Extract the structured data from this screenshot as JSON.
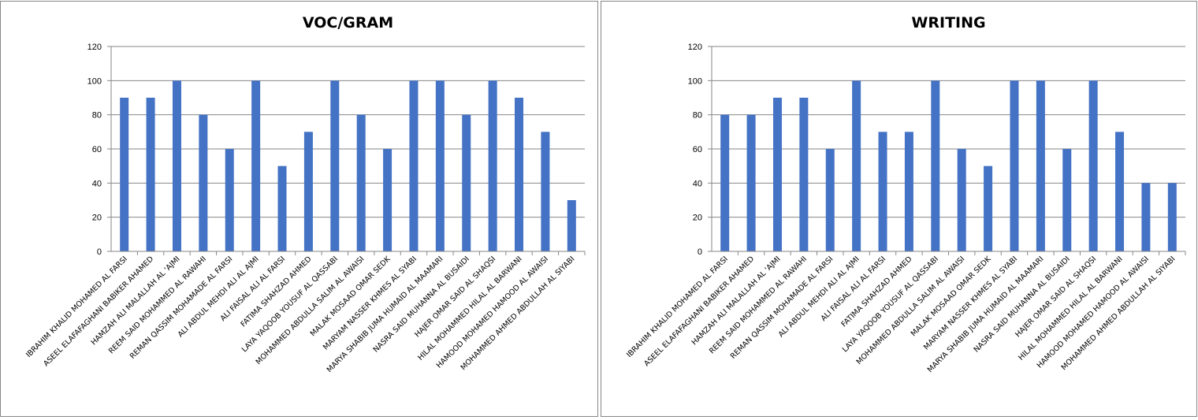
{
  "chart_data": [
    {
      "type": "bar",
      "title": "VOC/GRAM",
      "xlabel": "",
      "ylabel": "",
      "ylim": [
        0,
        120
      ],
      "yticks": [
        0,
        20,
        40,
        60,
        80,
        100,
        120
      ],
      "grid": true,
      "bar_color": "#4472C4",
      "categories": [
        "IBRAHIM KHALID MOHAMED AL FARSI",
        "ASEEL ELAFAFAGHANI BABIKER AHAMED",
        "HAMZAH ALI MALALLAH AL 'AJMI",
        "REEM SAID MOHAMMED AL RAWAHI",
        "REMAN QASSIM MOHAMADE AL FARSI",
        "ALI ABDUL MEHDI ALI AL AJMI",
        "ALI FAISAL ALI AL FARSI",
        "FATIMA SHAHZAD AHMED",
        "LAYA YAQOOB YOUSUF AL QASSABI",
        "MOHAMMED ABDULLA SALIM AL AWAISI",
        "MALAK MOSAAD OMAR SEDK",
        "MARYAM NASSER KHMES AL SYABI",
        "MARYA SHABIB JUMA HUMAID AL MAAMARI",
        "NASRA SAID MUHANNA AL BUSAIDI",
        "HAJER OMAR SAID AL SHAQSI",
        "HILAL MOHAMMED HILAL AL BARWANI",
        "HAMOOD MOHAMED HAMOOD AL AWAISI",
        "MOHAMMED AHMED ABDULLAH AL SIYABI"
      ],
      "values": [
        90,
        90,
        100,
        80,
        60,
        100,
        50,
        70,
        100,
        80,
        60,
        100,
        100,
        80,
        100,
        90,
        70,
        30
      ]
    },
    {
      "type": "bar",
      "title": "WRITING",
      "xlabel": "",
      "ylabel": "",
      "ylim": [
        0,
        120
      ],
      "yticks": [
        0,
        20,
        40,
        60,
        80,
        100,
        120
      ],
      "grid": true,
      "bar_color": "#4472C4",
      "categories": [
        "IBRAHIM KHALID MOHAMED AL FARSI",
        "ASEEL ELAFAFAGHANI BABIKER AHAMED",
        "HAMZAH ALI MALALLAH AL 'AJMI",
        "REEM SAID MOHAMMED AL RAWAHI",
        "REMAN QASSIM MOHAMADE AL FARSI",
        "ALI ABDUL MEHDI ALI AL AJMI",
        "ALI FAISAL ALI AL FARSI",
        "FATIMA SHAHZAD AHMED",
        "LAYA YAQOOB YOUSUF AL QASSABI",
        "MOHAMMED ABDULLA SALIM AL AWAISI",
        "MALAK MOSAAD OMAR SEDK",
        "MARYAM NASSER KHMES AL SYABI",
        "MARYA SHABIB JUMA HUMAID AL MAAMARI",
        "NASRA SAID MUHANNA AL BUSAIDI",
        "HAJER OMAR SAID AL SHAQSI",
        "HILAL MOHAMMED HILAL AL BARWANI",
        "HAMOOD MOHAMED HAMOOD AL AWAISI",
        "MOHAMMED AHMED ABDULLAH AL SIYABI"
      ],
      "values": [
        80,
        80,
        90,
        90,
        60,
        100,
        70,
        70,
        100,
        60,
        50,
        100,
        100,
        60,
        100,
        70,
        40,
        40
      ]
    }
  ]
}
